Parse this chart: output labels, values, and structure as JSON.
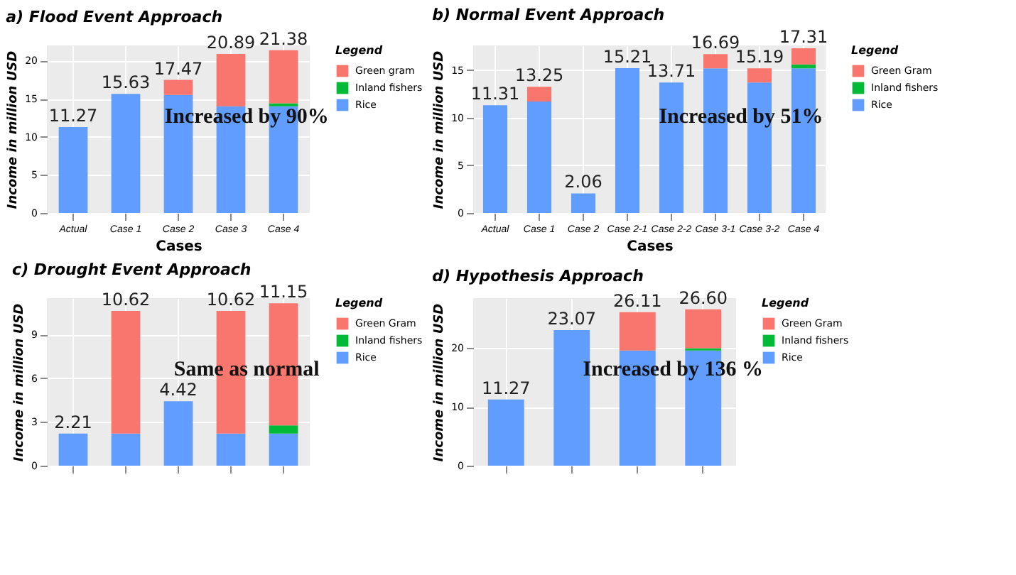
{
  "chart_data": [
    {
      "type": "bar",
      "title": "a) Flood Event Approach",
      "xlabel": "Cases",
      "ylabel": "Income in million USD",
      "legend_title": "Legend",
      "categories": [
        "Actual",
        "Case 1",
        "Case 2",
        "Case 3",
        "Case 4"
      ],
      "stacked": true,
      "ylim": [
        0,
        22
      ],
      "yticks": [
        0,
        5,
        10,
        15,
        20
      ],
      "grid": true,
      "legend": "right",
      "series": [
        {
          "name": "Rice",
          "color": "#619cff",
          "values": [
            11.27,
            15.63,
            15.5,
            14.0,
            14.0
          ]
        },
        {
          "name": "Inland fishers",
          "color": "#00ba38",
          "values": [
            null,
            null,
            null,
            null,
            0.4
          ]
        },
        {
          "name": "Green gram",
          "color": "#f8766d",
          "values": [
            null,
            null,
            1.97,
            6.89,
            6.98
          ]
        }
      ],
      "totals": [
        "11.27",
        "15.63",
        "17.47",
        "20.89",
        "21.38"
      ],
      "annotations": [
        "Increased by 90%"
      ]
    },
    {
      "type": "bar",
      "title": "b) Normal Event Approach",
      "xlabel": "Cases",
      "ylabel": "Income in million USD",
      "legend_title": "Legend",
      "categories": [
        "Actual",
        "Case 1",
        "Case 2",
        "Case 2-1",
        "Case 2-2",
        "Case 3-1",
        "Case 3-2",
        "Case 4"
      ],
      "stacked": true,
      "ylim": [
        0,
        17.6
      ],
      "yticks": [
        0,
        5,
        10,
        15
      ],
      "grid": true,
      "legend": "right",
      "series": [
        {
          "name": "Rice",
          "color": "#619cff",
          "values": [
            11.31,
            11.7,
            2.06,
            15.21,
            13.71,
            15.2,
            13.71,
            15.2
          ]
        },
        {
          "name": "Inland fishers",
          "color": "#00ba38",
          "values": [
            null,
            null,
            null,
            null,
            null,
            null,
            null,
            0.4
          ]
        },
        {
          "name": "Green Gram",
          "color": "#f8766d",
          "values": [
            null,
            1.55,
            null,
            null,
            null,
            1.49,
            1.48,
            1.71
          ]
        }
      ],
      "totals": [
        "11.31",
        "13.25",
        "2.06",
        "15.21",
        "13.71",
        "16.69",
        "15.19",
        "17.31"
      ],
      "annotations": [
        "Increased by 51%"
      ]
    },
    {
      "type": "bar",
      "title": "c) Drought Event Approach",
      "ylabel": "Income in million USD",
      "legend_title": "Legend",
      "categories": [
        null,
        null,
        null,
        null,
        null
      ],
      "tick_labels": "y",
      "stacked": true,
      "ylim": [
        0,
        11.5
      ],
      "yticks": [
        0,
        3,
        6,
        9
      ],
      "grid": true,
      "legend": "right",
      "series": [
        {
          "name": "Rice",
          "color": "#619cff",
          "values": [
            2.21,
            2.21,
            4.42,
            2.21,
            2.21
          ]
        },
        {
          "name": "Inland fishers",
          "color": "#00ba38",
          "values": [
            null,
            null,
            null,
            null,
            0.55
          ]
        },
        {
          "name": "Green Gram",
          "color": "#f8766d",
          "values": [
            null,
            8.41,
            null,
            8.41,
            8.39
          ]
        }
      ],
      "totals": [
        "2.21",
        "10.62",
        "4.42",
        "10.62",
        "11.15"
      ],
      "annotations": [
        "Same as normal"
      ]
    },
    {
      "type": "bar",
      "title": "d) Hypothesis Approach",
      "ylabel": "Income in million USD",
      "legend_title": "Legend",
      "categories": [
        null,
        null,
        null,
        null
      ],
      "tick_labels": "y",
      "stacked": true,
      "ylim": [
        0,
        28.5
      ],
      "yticks": [
        0,
        10,
        20
      ],
      "grid": true,
      "legend": "right",
      "series": [
        {
          "name": "Rice",
          "color": "#619cff",
          "values": [
            11.27,
            23.07,
            19.6,
            19.6
          ]
        },
        {
          "name": "Inland fishers",
          "color": "#00ba38",
          "values": [
            null,
            null,
            null,
            0.4
          ]
        },
        {
          "name": "Green Gram",
          "color": "#f8766d",
          "values": [
            null,
            null,
            6.51,
            6.6
          ]
        }
      ],
      "totals": [
        "11.27",
        "23.07",
        "26.11",
        "26.60"
      ],
      "annotations": [
        "Increased by 136 %"
      ]
    }
  ]
}
